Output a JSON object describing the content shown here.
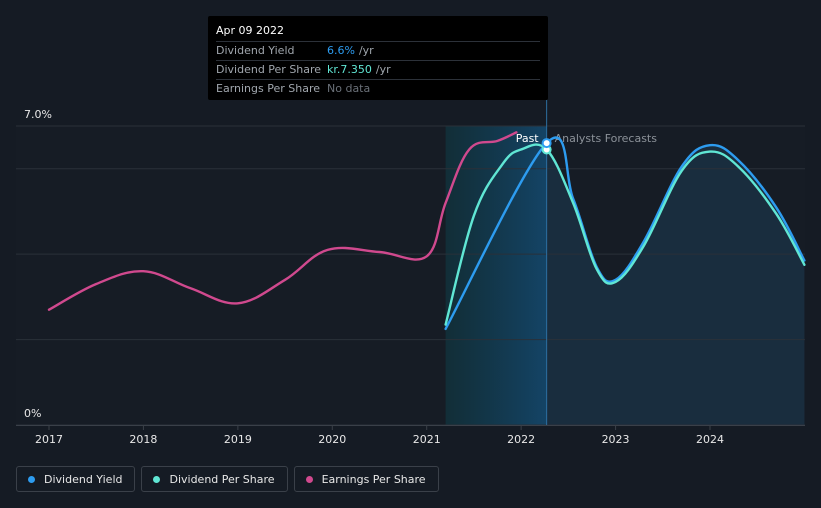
{
  "tooltip": {
    "date": "Apr 09 2022",
    "rows": [
      {
        "label": "Dividend Yield",
        "value": "6.6%",
        "unit": "/yr"
      },
      {
        "label": "Dividend Per Share",
        "value": "kr.7.350",
        "unit": "/yr"
      },
      {
        "label": "Earnings Per Share",
        "value": "No data",
        "unit": ""
      }
    ]
  },
  "legend": {
    "dividend_yield": "Dividend Yield",
    "dividend_per_share": "Dividend Per Share",
    "earnings_per_share": "Earnings Per Share"
  },
  "colors": {
    "dividend_yield": "#2d9cf0",
    "dividend_per_share": "#60e6d4",
    "earnings_per_share": "#d0498e"
  },
  "chart_data": {
    "type": "line",
    "title": "",
    "xlabel": "",
    "ylabel": "",
    "ylim": [
      0,
      7.0
    ],
    "xlim": [
      2016.7,
      2025.0
    ],
    "y_ticks": [
      {
        "value": 7.0,
        "label": "7.0%"
      },
      {
        "value": 0,
        "label": "0%"
      }
    ],
    "x_ticks": [
      {
        "value": 2017,
        "label": "2017"
      },
      {
        "value": 2018,
        "label": "2018"
      },
      {
        "value": 2019,
        "label": "2019"
      },
      {
        "value": 2020,
        "label": "2020"
      },
      {
        "value": 2021,
        "label": "2021"
      },
      {
        "value": 2022,
        "label": "2022"
      },
      {
        "value": 2023,
        "label": "2023"
      },
      {
        "value": 2024,
        "label": "2024"
      }
    ],
    "gridlines": [
      7.0,
      6.0,
      4.0,
      2.0,
      0
    ],
    "regions": {
      "past_label": "Past",
      "forecast_label": "Analysts Forecasts",
      "highlight_start": 2021.2,
      "past_end": 2022.27
    },
    "series": [
      {
        "name": "Earnings Per Share",
        "key": "earnings_per_share",
        "points": [
          [
            2017.0,
            2.7
          ],
          [
            2017.5,
            3.3
          ],
          [
            2018.0,
            3.6
          ],
          [
            2018.5,
            3.2
          ],
          [
            2019.0,
            2.85
          ],
          [
            2019.5,
            3.4
          ],
          [
            2019.95,
            4.1
          ],
          [
            2020.5,
            4.05
          ],
          [
            2021.0,
            3.95
          ],
          [
            2021.2,
            5.2
          ],
          [
            2021.45,
            6.45
          ],
          [
            2021.75,
            6.65
          ],
          [
            2021.95,
            6.85
          ]
        ]
      },
      {
        "name": "Dividend Per Share",
        "key": "dividend_per_share",
        "points": [
          [
            2021.2,
            2.35
          ],
          [
            2021.5,
            4.9
          ],
          [
            2021.8,
            6.1
          ],
          [
            2022.0,
            6.45
          ],
          [
            2022.27,
            6.45
          ],
          [
            2022.55,
            5.2
          ],
          [
            2022.8,
            3.65
          ],
          [
            2023.0,
            3.35
          ],
          [
            2023.3,
            4.2
          ],
          [
            2023.7,
            5.95
          ],
          [
            2024.0,
            6.4
          ],
          [
            2024.3,
            6.05
          ],
          [
            2024.7,
            4.95
          ],
          [
            2025.0,
            3.75
          ]
        ]
      },
      {
        "name": "Dividend Yield",
        "key": "dividend_yield",
        "points": [
          [
            2021.2,
            2.25
          ],
          [
            2022.27,
            6.6
          ],
          [
            2022.55,
            5.3
          ],
          [
            2022.8,
            3.7
          ],
          [
            2023.0,
            3.4
          ],
          [
            2023.3,
            4.3
          ],
          [
            2023.7,
            6.05
          ],
          [
            2024.0,
            6.55
          ],
          [
            2024.3,
            6.2
          ],
          [
            2024.7,
            5.1
          ],
          [
            2025.0,
            3.85
          ]
        ]
      }
    ],
    "marker": {
      "x": 2022.27,
      "dividend_yield": 6.6,
      "dividend_per_share": 6.45
    }
  }
}
